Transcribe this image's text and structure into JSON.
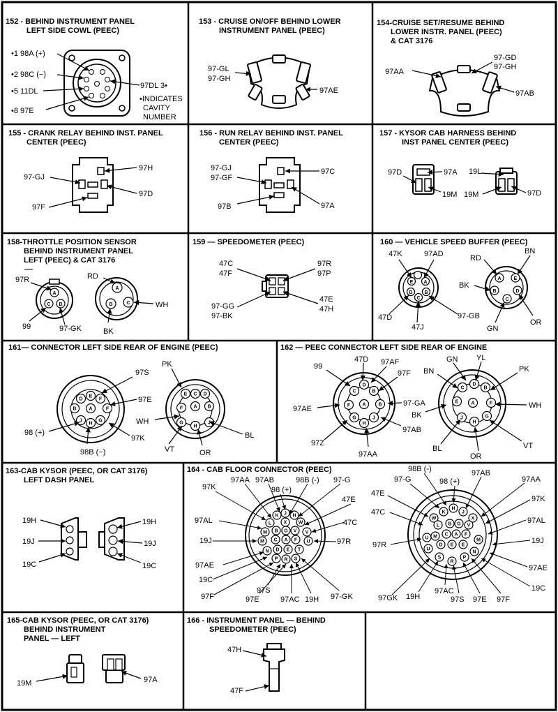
{
  "panels": {
    "p152": {
      "title": [
        "152 - BEHIND INSTRUMENT PANEL",
        "LEFT SIDE COWL (PEEC)"
      ],
      "labels": {
        "l1": "•1 98A (+)",
        "l2": "•2 98C (−)",
        "l5": "•5 11DL",
        "l8": "•8  97E",
        "l3": "97DL 3•"
      },
      "note": [
        "•INDICATES",
        "CAVITY",
        "NUMBER"
      ]
    },
    "p153": {
      "title": [
        "153 - CRUISE ON/OFF BEHIND LOWER",
        "INSTRUMENT PANEL (PEEC)"
      ],
      "labels": {
        "gl": "97-GL",
        "gh": "97-GH",
        "ae": "97AE"
      }
    },
    "p154": {
      "title": [
        "154-CRUISE SET/RESUME BEHIND",
        "LOWER INSTR. PANEL (PEEC)",
        "& CAT 3176"
      ],
      "labels": {
        "aa": "97AA",
        "gd": "97-GD",
        "gh": "97-GH",
        "ab": "97AB"
      }
    },
    "p155": {
      "title": [
        "155 - CRANK RELAY BEHIND INST. PANEL",
        "CENTER (PEEC)"
      ],
      "labels": {
        "gj": "97-GJ",
        "h": "97H",
        "d": "97D",
        "f": "97F"
      }
    },
    "p156": {
      "title": [
        "156 - RUN RELAY BEHIND INST. PANEL",
        "CENTER (PEEC)"
      ],
      "labels": {
        "gj": "97-GJ",
        "gf": "97-GF",
        "c": "97C",
        "b": "97B",
        "a": "97A"
      }
    },
    "p157": {
      "title": [
        "157 - KYSOR CAB HARNESS BEHIND",
        "INST PANEL CENTER (PEEC)"
      ],
      "labels": {
        "d1": "97D",
        "a": "97A",
        "m1": "19M",
        "l": "19L",
        "m2": "19M",
        "d2": "97D"
      }
    },
    "p158": {
      "title": [
        "158-THROTTLE POSITION SENSOR",
        "BEHIND INSTRUMENT PANEL",
        "LEFT (PEEC) & CAT 3176"
      ],
      "labels": {
        "r": "97R",
        "n99": "99",
        "gk": "97-GK",
        "rd": "RD",
        "wh": "WH",
        "bk": "BK"
      },
      "pins": [
        "A",
        "C",
        "B"
      ]
    },
    "p159": {
      "title": [
        "159 — SPEEDOMETER (PEEC)"
      ],
      "labels": {
        "c": "47C",
        "f": "47F",
        "r": "97R",
        "p": "97P",
        "gg": "97-GG",
        "bk": "97-BK",
        "e": "47E",
        "h": "47H"
      }
    },
    "p160": {
      "title": [
        "160 — VEHICLE SPEED BUFFER (PEEC)"
      ],
      "labels": {
        "k": "47K",
        "ad": "97AD",
        "d": "47D",
        "j": "47J",
        "gb": "97-GB",
        "rd": "RD",
        "bn": "BN",
        "bk": "BK",
        "gn": "GN",
        "or": "OR"
      },
      "pins": [
        "A",
        "B",
        "C",
        "D",
        "E"
      ]
    },
    "p161": {
      "title": [
        "161— CONNECTOR LEFT SIDE REAR OF ENGINE (PEEC)"
      ],
      "labels": {
        "s": "97S",
        "e": "97E",
        "k": "97K",
        "n98": "98 (+)",
        "b": "98B (−)",
        "pk": "PK",
        "wh": "WH",
        "vt": "VT",
        "or": "OR",
        "bl": "BL"
      },
      "pins": [
        "A",
        "B",
        "C",
        "D",
        "E",
        "F",
        "G",
        "H",
        "J"
      ]
    },
    "p162": {
      "title": [
        "162 — PEEC CONNECTOR LEFT SIDE REAR OF ENGINE"
      ],
      "labels": {
        "n99": "99",
        "d": "47D",
        "af": "97AF",
        "f": "97F",
        "ae": "97AE",
        "ga": "97-GA",
        "ab": "97AB",
        "z": "97Z",
        "aa": "97AA",
        "gn": "GN",
        "yl": "YL",
        "bn": "BN",
        "pk": "PK",
        "bk": "BK",
        "wh": "WH",
        "bl": "BL",
        "or": "OR",
        "vt": "VT"
      }
    },
    "p163": {
      "title": [
        "163-CAB KYSOR (PEEC, OR CAT 3176)",
        "LEFT DASH PANEL"
      ],
      "labels": {
        "h1": "19H",
        "j1": "19J",
        "c1": "19C",
        "h2": "19H",
        "j2": "19J",
        "c2": "19C"
      }
    },
    "p164": {
      "title": [
        "164 - CAB FLOOR CONNECTOR (PEEC)"
      ],
      "left": {
        "aa": "97AA",
        "ab": "97AB",
        "b": "98B (-)",
        "g": "97-G",
        "k": "97K",
        "p": "98 (+)",
        "e": "47E",
        "al": "97AL",
        "c": "47C",
        "j": "19J",
        "r": "97R",
        "ae": "97AE",
        "c19": "19C",
        "f": "97F",
        "s": "97S",
        "e97": "97E",
        "ac": "97AC",
        "h": "19H",
        "gk": "97-GK"
      },
      "right": {
        "b": "98B (-)",
        "g": "97-G",
        "p": "98 (+)",
        "ab": "97AB",
        "e": "47E",
        "aa": "97AA",
        "k": "97K",
        "c": "47C",
        "al": "97AL",
        "r": "97R",
        "j": "19J",
        "ae": "97AE",
        "c19": "19C",
        "gk": "97GK",
        "h": "19H",
        "ac": "97AC",
        "s": "97S",
        "e97": "97E",
        "f": "97F"
      },
      "pins": [
        "K",
        "J",
        "H",
        "X",
        "W",
        "L",
        "B",
        "G",
        "V",
        "M",
        "C",
        "A",
        "F",
        "U",
        "N",
        "D",
        "E",
        "T",
        "P",
        "R",
        "S"
      ]
    },
    "p165": {
      "title": [
        "165-CAB KYSOR (PEEC, OR CAT 3176)",
        "BEHIND INSTRUMENT",
        "PANEL — LEFT"
      ],
      "labels": {
        "m": "19M",
        "a": "97A"
      }
    },
    "p166": {
      "title": [
        "166 - INSTRUMENT PANEL — BEHIND",
        "SPEEDOMETER (PEEC)"
      ],
      "labels": {
        "h": "47H",
        "f": "47F"
      }
    }
  }
}
